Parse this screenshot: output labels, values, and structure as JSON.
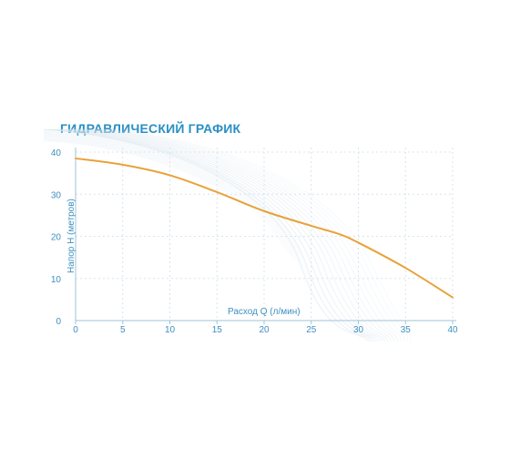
{
  "chart_data": {
    "type": "line",
    "title": "ГИДРАВЛИЧЕСКИЙ ГРАФИК",
    "xlabel": "Расход Q (л/мин)",
    "ylabel": "Напор H (метров)",
    "xlim": [
      0,
      40
    ],
    "ylim": [
      0,
      40
    ],
    "xticks": [
      0,
      5,
      10,
      15,
      20,
      25,
      30,
      35,
      40
    ],
    "yticks": [
      0,
      10,
      20,
      30,
      40
    ],
    "grid": true,
    "series": [
      {
        "color": "#e8a23a",
        "x": [
          0,
          5,
          10,
          15,
          20,
          25,
          28,
          30,
          35,
          40
        ],
        "y": [
          38.5,
          37,
          34.5,
          30.5,
          26,
          22.5,
          20.5,
          18.5,
          12.5,
          5.5
        ]
      }
    ],
    "colors": {
      "title": "#2a8fc4",
      "ticks": "#3d8fbf",
      "grid": "#d8e4ec",
      "axis": "#9dc3da"
    }
  }
}
